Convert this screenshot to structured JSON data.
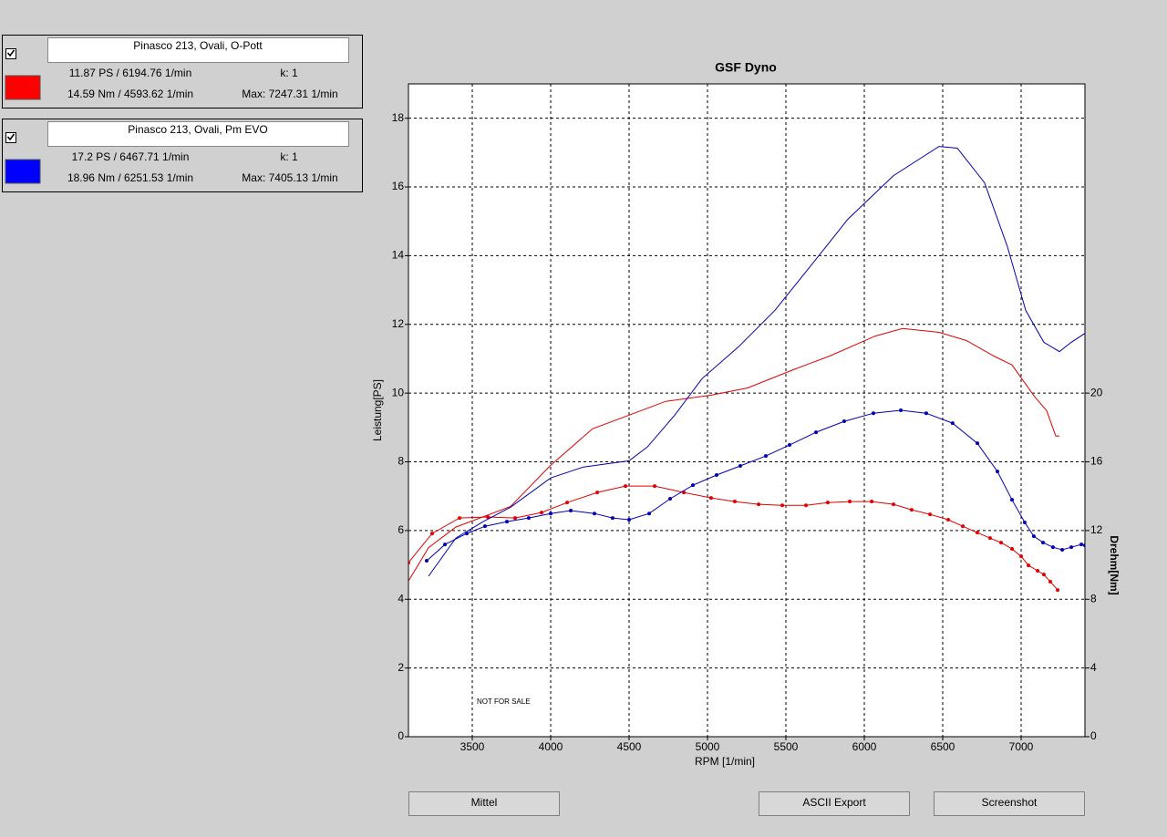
{
  "panels": [
    {
      "checked": true,
      "name": "Pinasco 213, Ovali, O-Pott",
      "color": "#ff0000",
      "power": "11.87 PS / 6194.76 1/min",
      "k": "k: 1",
      "torque": "14.59 Nm / 4593.62 1/min",
      "max": "Max: 7247.31 1/min"
    },
    {
      "checked": true,
      "name": "Pinasco 213, Ovali, Pm EVO",
      "color": "#0000ff",
      "power": "17.2 PS / 6467.71 1/min",
      "k": "k: 1",
      "torque": "18.96 Nm / 6251.53 1/min",
      "max": "Max: 7405.13 1/min"
    }
  ],
  "chart_data": {
    "type": "line",
    "title": "GSF Dyno",
    "xlabel": "RPM [1/min]",
    "ylabel": "Leistung[PS]",
    "y2label": "Drehm[Nm]",
    "watermark": "NOT FOR SALE",
    "xlim": [
      3093,
      7407
    ],
    "xticks": [
      3500,
      4000,
      4500,
      5000,
      5500,
      6000,
      6500,
      7000
    ],
    "ylim": [
      0,
      19
    ],
    "yticks": [
      0,
      2,
      4,
      6,
      8,
      10,
      12,
      14,
      16,
      18
    ],
    "y2lim": [
      0,
      38
    ],
    "y2ticks": [
      0,
      4,
      8,
      12,
      16,
      20
    ],
    "grid": true,
    "series": [
      {
        "color": "#e00000",
        "axis": "y",
        "markers": false,
        "x": [
          3093,
          3221,
          3395,
          3744,
          4000,
          4267,
          4500,
          4733,
          5023,
          5256,
          5547,
          5779,
          6070,
          6244,
          6477,
          6651,
          6826,
          6942,
          7087,
          7163,
          7221,
          7244
        ],
        "values": [
          4.53,
          5.5,
          6.1,
          6.7,
          7.9,
          8.96,
          9.36,
          9.76,
          9.94,
          10.15,
          10.68,
          11.08,
          11.66,
          11.88,
          11.77,
          11.53,
          11.08,
          10.82,
          9.89,
          9.49,
          8.75,
          8.75
        ]
      },
      {
        "color": "#e00000",
        "axis": "y2",
        "markers": true,
        "x": [
          3093,
          3244,
          3419,
          3599,
          3773,
          3942,
          4105,
          4297,
          4477,
          4663,
          4849,
          5023,
          5174,
          5326,
          5477,
          5628,
          5767,
          5907,
          6047,
          6186,
          6302,
          6419,
          6535,
          6628,
          6721,
          6802,
          6872,
          6942,
          7000,
          7047,
          7105,
          7145,
          7186,
          7233
        ],
        "values": [
          10.13,
          11.83,
          12.73,
          12.79,
          12.73,
          13.05,
          13.63,
          14.22,
          14.59,
          14.59,
          14.22,
          13.9,
          13.69,
          13.53,
          13.47,
          13.47,
          13.63,
          13.69,
          13.69,
          13.53,
          13.21,
          12.94,
          12.63,
          12.25,
          11.88,
          11.56,
          11.3,
          10.93,
          10.5,
          9.97,
          9.66,
          9.44,
          9.02,
          8.54
        ]
      },
      {
        "color": "#0000b0",
        "axis": "y",
        "markers": false,
        "x": [
          3221,
          3395,
          3570,
          3744,
          4000,
          4209,
          4500,
          4616,
          4791,
          4965,
          5198,
          5430,
          5663,
          5895,
          6186,
          6477,
          6593,
          6767,
          6913,
          7029,
          7145,
          7244,
          7320,
          7407
        ],
        "values": [
          4.67,
          5.78,
          6.26,
          6.68,
          7.53,
          7.85,
          8.03,
          8.43,
          9.36,
          10.42,
          11.35,
          12.41,
          13.73,
          15.06,
          16.33,
          17.18,
          17.13,
          16.12,
          14.26,
          12.41,
          11.48,
          11.21,
          11.48,
          11.74
        ]
      },
      {
        "color": "#0000b0",
        "axis": "y2",
        "markers": true,
        "x": [
          3209,
          3326,
          3465,
          3581,
          3721,
          3860,
          4000,
          4128,
          4279,
          4395,
          4500,
          4628,
          4762,
          4907,
          5058,
          5209,
          5372,
          5523,
          5692,
          5872,
          6058,
          6233,
          6395,
          6563,
          6721,
          6849,
          6942,
          7023,
          7081,
          7140,
          7203,
          7262,
          7320,
          7384,
          7407
        ],
        "values": [
          10.24,
          11.19,
          11.83,
          12.25,
          12.52,
          12.73,
          12.99,
          13.16,
          12.99,
          12.73,
          12.63,
          12.99,
          13.85,
          14.64,
          15.23,
          15.76,
          16.34,
          16.98,
          17.72,
          18.36,
          18.83,
          19.0,
          18.83,
          18.25,
          17.08,
          15.44,
          13.79,
          12.47,
          11.67,
          11.3,
          11.03,
          10.88,
          11.03,
          11.19,
          11.14
        ]
      }
    ]
  },
  "buttons": [
    "Mittel",
    "ASCII Export",
    "Screenshot"
  ]
}
